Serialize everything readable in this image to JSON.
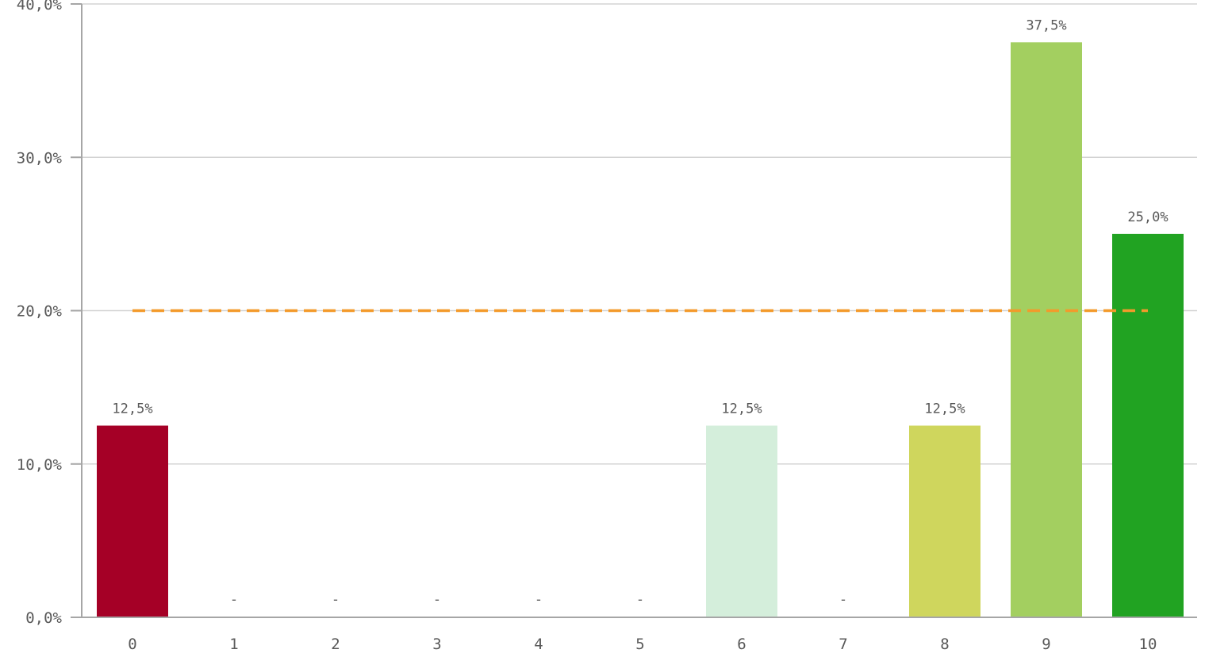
{
  "chart_data": {
    "type": "bar",
    "categories": [
      "0",
      "1",
      "2",
      "3",
      "4",
      "5",
      "6",
      "7",
      "8",
      "9",
      "10"
    ],
    "values": [
      12.5,
      0,
      0,
      0,
      0,
      0,
      12.5,
      0,
      12.5,
      37.5,
      25.0
    ],
    "data_labels": [
      "12,5%",
      "-",
      "-",
      "-",
      "-",
      "-",
      "12,5%",
      "-",
      "12,5%",
      "37,5%",
      "25,0%"
    ],
    "bar_colors": [
      "#a50026",
      "#a50026",
      "#a50026",
      "#a50026",
      "#a50026",
      "#a50026",
      "#d4eedb",
      "#a50026",
      "#cfd65d",
      "#a3cf60",
      "#21a322"
    ],
    "y_ticks": [
      0,
      10,
      20,
      30,
      40
    ],
    "y_tick_labels": [
      "0,0%",
      "10,0%",
      "20,0%",
      "30,0%",
      "40,0%"
    ],
    "ylim": [
      0,
      40
    ],
    "reference_line": {
      "value": 20,
      "color": "#f39a2b",
      "style": "dashed"
    },
    "grid": true,
    "title": "",
    "xlabel": "",
    "ylabel": ""
  }
}
